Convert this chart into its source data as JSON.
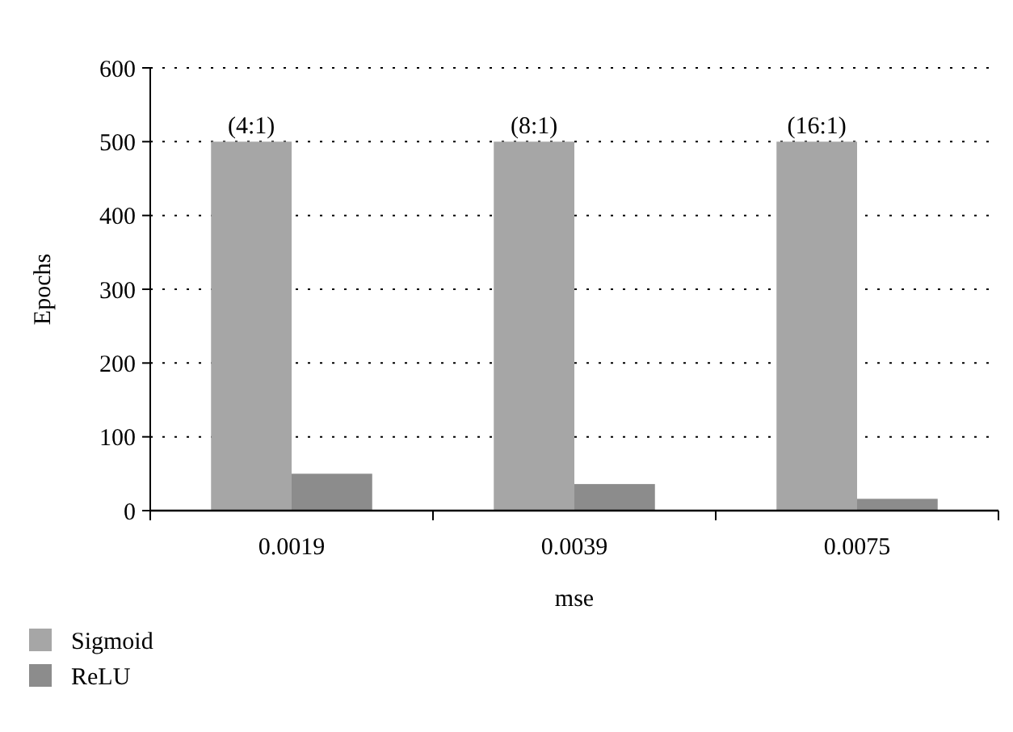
{
  "chart_data": {
    "type": "bar",
    "xlabel": "mse",
    "ylabel": "Epochs",
    "categories": [
      "0.0019",
      "0.0039",
      "0.0075"
    ],
    "series": [
      {
        "name": "Sigmoid",
        "color": "#a6a6a6",
        "values": [
          500,
          500,
          500
        ]
      },
      {
        "name": "ReLU",
        "color": "#8c8c8c",
        "values": [
          50,
          36,
          16
        ]
      }
    ],
    "ylim": [
      0,
      600
    ],
    "yticks": [
      0,
      100,
      200,
      300,
      400,
      500,
      600
    ],
    "grid": "y",
    "legend": "bottom left",
    "annotations": [
      {
        "text": "(4:1)",
        "x": "0.0019",
        "y": 500
      },
      {
        "text": "(8:1)",
        "x": "0.0039",
        "y": 500
      },
      {
        "text": "(16:1)",
        "x": "0.0075",
        "y": 500
      }
    ]
  }
}
